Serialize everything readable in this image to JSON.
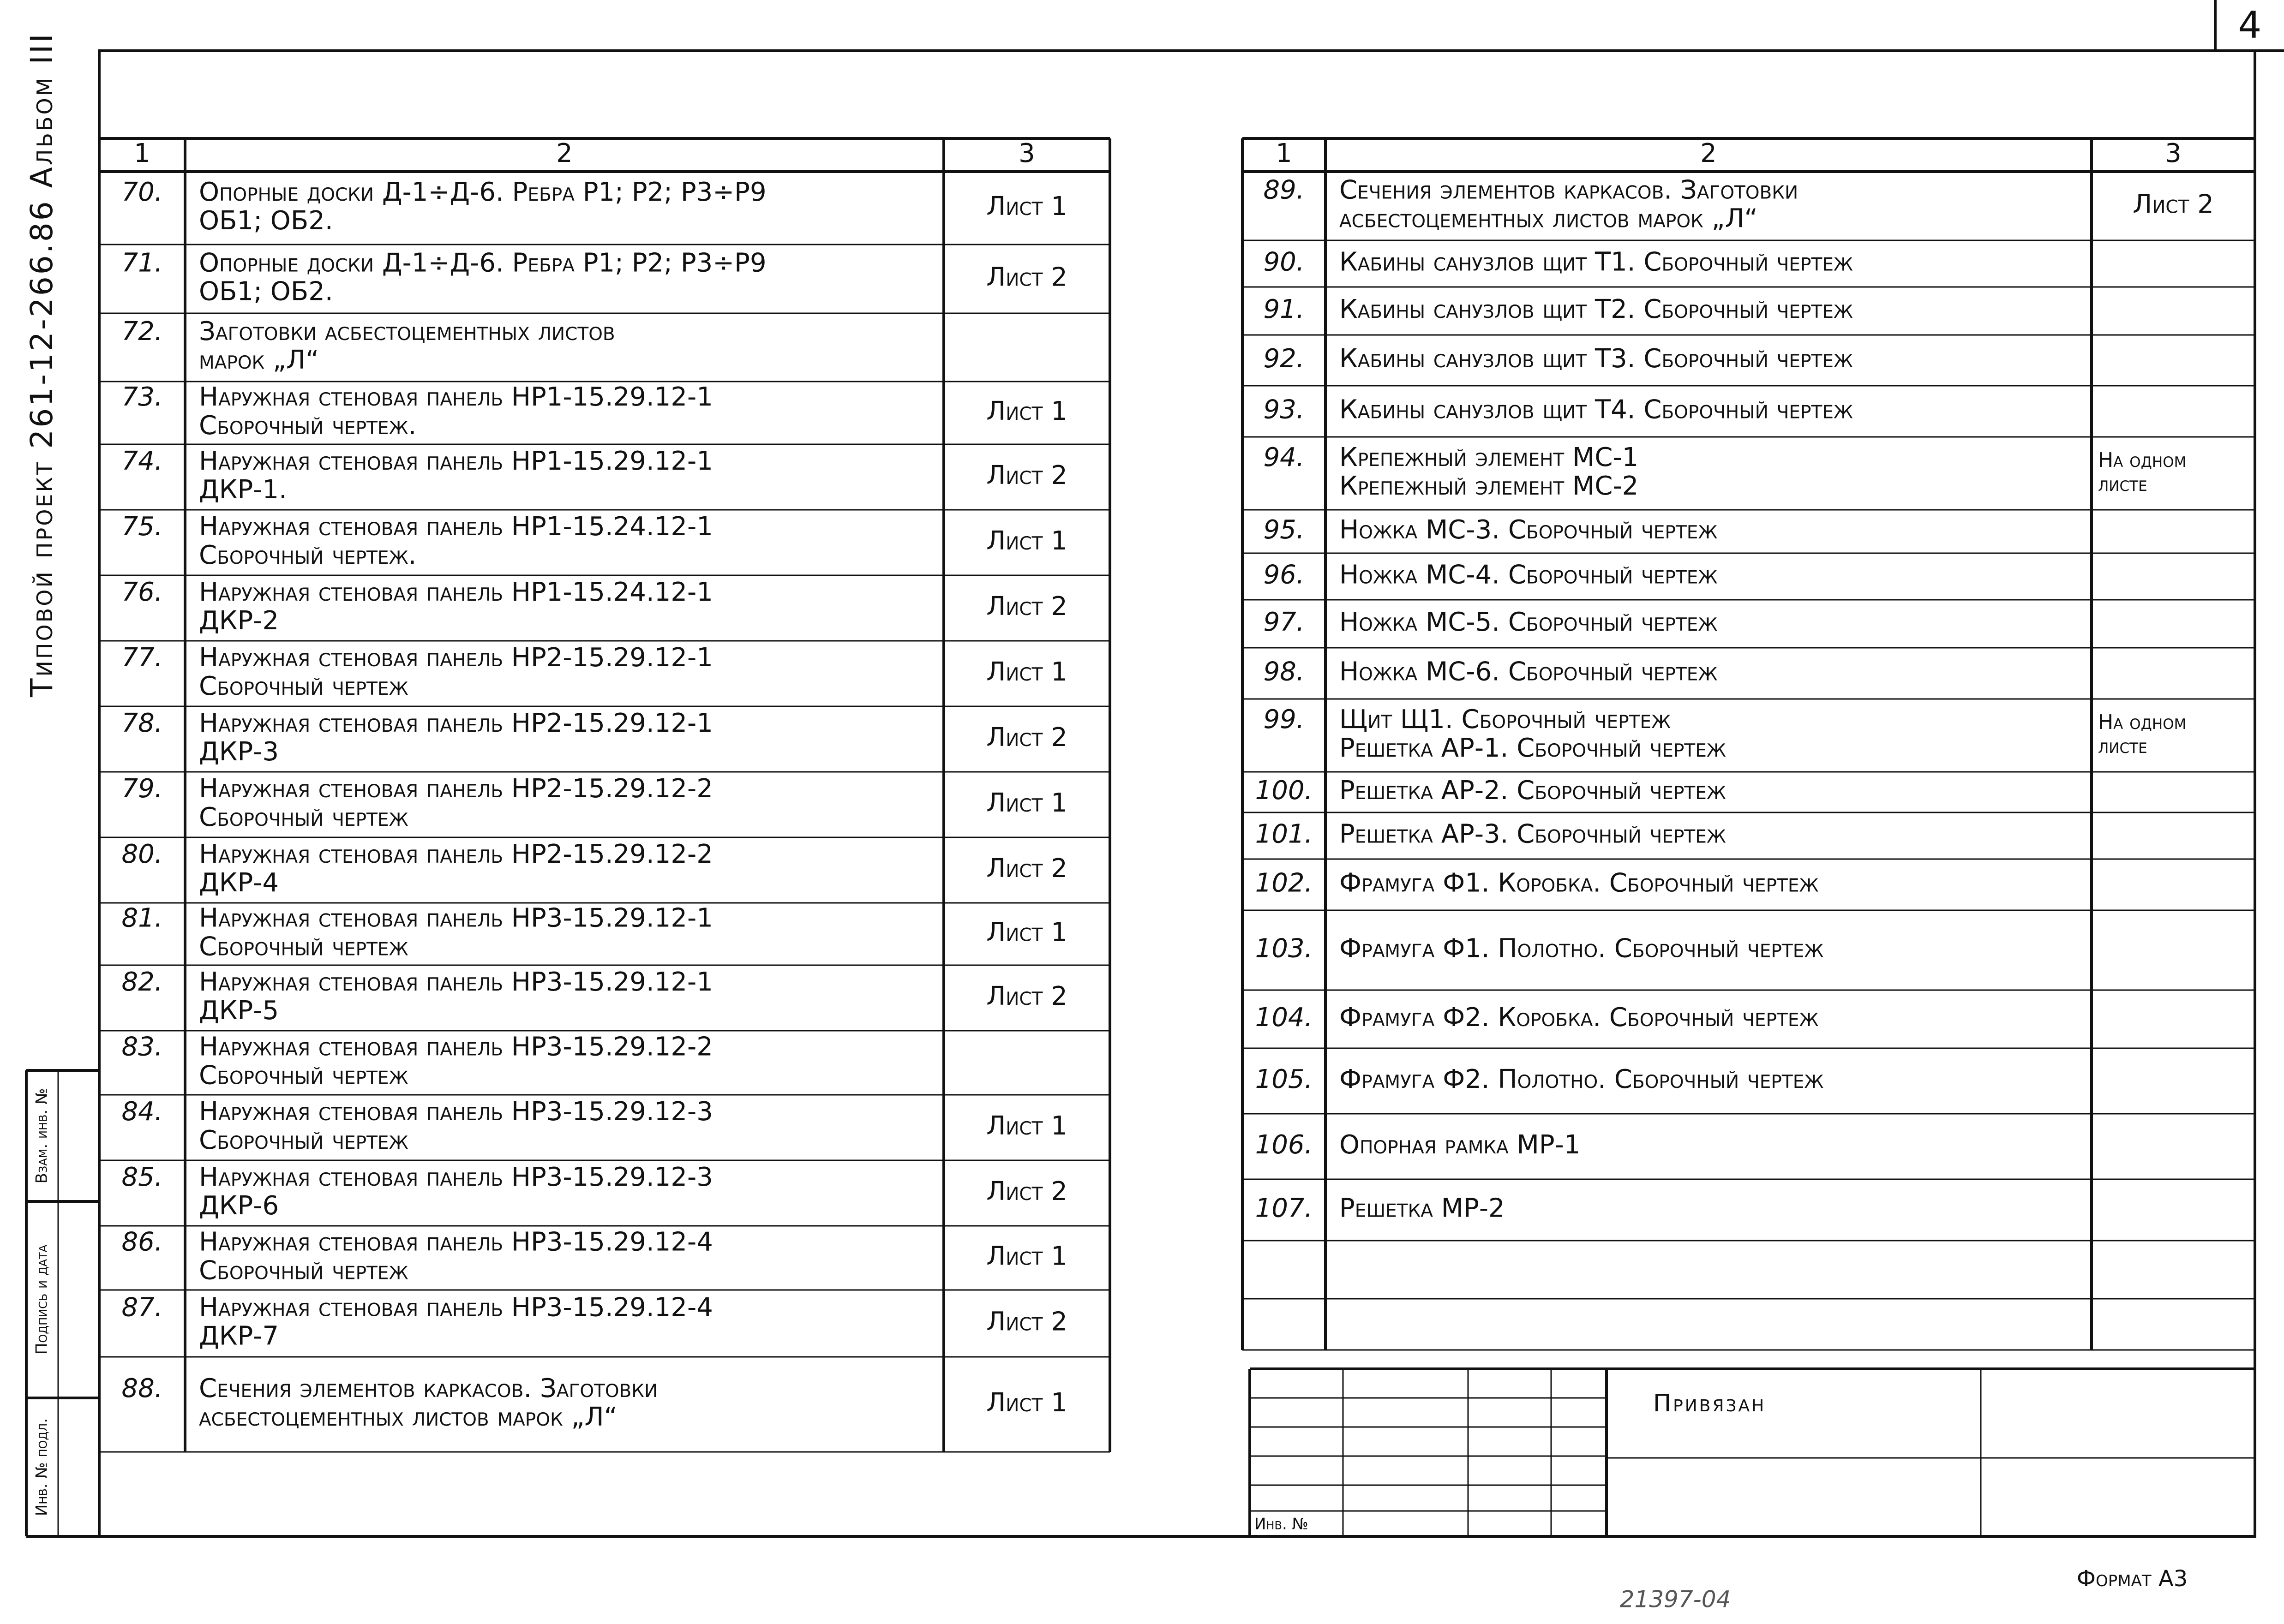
{
  "side_label": "Типовой проект 261-12-266.86 Альбом III",
  "page_number": "4",
  "side_stamp": [
    "Взам. инв. №",
    "Подпись и дата",
    "Инв. № подл."
  ],
  "left_table": {
    "headers": [
      "1",
      "2",
      "3"
    ],
    "rows": [
      {
        "no": "70.",
        "text": [
          "Опорные доски Д-1÷Д-6. Ребра Р1; Р2; Р3÷Р9",
          "ОБ1; ОБ2."
        ],
        "sheet": [
          "Лист 1"
        ]
      },
      {
        "no": "71.",
        "text": [
          "Опорные доски Д-1÷Д-6. Ребра Р1; Р2; Р3÷Р9",
          "ОБ1; ОБ2."
        ],
        "sheet": [
          "Лист 2"
        ]
      },
      {
        "no": "72.",
        "text": [
          "Заготовки асбестоцементных листов",
          "марок „Л“"
        ]
      },
      {
        "no": "73.",
        "text": [
          "Наружная стеновая панель НР1-15.29.12-1",
          "Сборочный чертеж."
        ],
        "sheet": [
          "Лист 1"
        ]
      },
      {
        "no": "74.",
        "text": [
          "Наружная стеновая панель НР1-15.29.12-1",
          "ДКР-1."
        ],
        "sheet": [
          "Лист 2"
        ]
      },
      {
        "no": "75.",
        "text": [
          "Наружная стеновая панель НР1-15.24.12-1",
          "Сборочный чертеж."
        ],
        "sheet": [
          "Лист 1"
        ]
      },
      {
        "no": "76.",
        "text": [
          "Наружная стеновая панель НР1-15.24.12-1",
          "ДКР-2"
        ],
        "sheet": [
          "Лист 2"
        ]
      },
      {
        "no": "77.",
        "text": [
          "Наружная стеновая панель НР2-15.29.12-1",
          "Сборочный чертеж"
        ],
        "sheet": [
          "Лист 1"
        ]
      },
      {
        "no": "78.",
        "text": [
          "Наружная стеновая панель НР2-15.29.12-1",
          "ДКР-3"
        ],
        "sheet": [
          "Лист 2"
        ]
      },
      {
        "no": "79.",
        "text": [
          "Наружная стеновая панель НР2-15.29.12-2",
          "Сборочный чертеж"
        ],
        "sheet": [
          "Лист 1"
        ]
      },
      {
        "no": "80.",
        "text": [
          "Наружная стеновая панель НР2-15.29.12-2",
          "ДКР-4"
        ],
        "sheet": [
          "Лист 2"
        ]
      },
      {
        "no": "81.",
        "text": [
          "Наружная стеновая панель НР3-15.29.12-1",
          "Сборочный чертеж"
        ],
        "sheet": [
          "Лист 1"
        ]
      },
      {
        "no": "82.",
        "text": [
          "Наружная стеновая панель НР3-15.29.12-1",
          "ДКР-5"
        ],
        "sheet": [
          "Лист 2"
        ]
      },
      {
        "no": "83.",
        "text": [
          "Наружная стеновая панель НР3-15.29.12-2",
          "Сборочный чертеж"
        ]
      },
      {
        "no": "84.",
        "text": [
          "Наружная стеновая панель НР3-15.29.12-3",
          "Сборочный чертеж"
        ],
        "sheet": [
          "Лист 1"
        ]
      },
      {
        "no": "85.",
        "text": [
          "Наружная стеновая панель НР3-15.29.12-3",
          "ДКР-6"
        ],
        "sheet": [
          "Лист 2"
        ]
      },
      {
        "no": "86.",
        "text": [
          "Наружная стеновая панель НР3-15.29.12-4",
          "Сборочный чертеж"
        ],
        "sheet": [
          "Лист 1"
        ]
      },
      {
        "no": "87.",
        "text": [
          "Наружная стеновая панель НР3-15.29.12-4",
          "ДКР-7"
        ],
        "sheet": [
          "Лист 2"
        ]
      },
      {
        "no": "88.",
        "text": [
          "Сечения элементов каркасов. Заготовки",
          "асбестоцементных листов марок „Л“"
        ],
        "sheet": [
          "Лист 1"
        ]
      }
    ]
  },
  "right_table": {
    "headers": [
      "1",
      "2",
      "3"
    ],
    "rows": [
      {
        "no": "89.",
        "text": [
          "Сечения элементов каркасов. Заготовки",
          "асбестоцементных листов марок „Л“"
        ],
        "sheet": [
          "Лист 2"
        ]
      },
      {
        "no": "90.",
        "text": [
          "Кабины санузлов щит Т1. Сборочный чертеж"
        ]
      },
      {
        "no": "91.",
        "text": [
          "Кабины санузлов щит Т2. Сборочный чертеж"
        ]
      },
      {
        "no": "92.",
        "text": [
          "Кабины санузлов щит Т3. Сборочный чертеж"
        ]
      },
      {
        "no": "93.",
        "text": [
          "Кабины санузлов щит Т4. Сборочный чертеж"
        ]
      },
      {
        "no": "94.",
        "text": [
          "Крепежный элемент МС-1",
          "Крепежный элемент МС-2"
        ],
        "sheet": [
          "На одном",
          "листе"
        ]
      },
      {
        "no": "95.",
        "text": [
          "Ножка МС-3. Сборочный чертеж"
        ]
      },
      {
        "no": "96.",
        "text": [
          "Ножка МС-4. Сборочный чертеж"
        ]
      },
      {
        "no": "97.",
        "text": [
          "Ножка МС-5. Сборочный чертеж"
        ]
      },
      {
        "no": "98.",
        "text": [
          "Ножка МС-6. Сборочный чертеж"
        ]
      },
      {
        "no": "99.",
        "text": [
          "Щит Щ1. Сборочный чертеж",
          "Решетка АР-1. Сборочный чертеж"
        ],
        "sheet": [
          "На одном",
          "листе"
        ]
      },
      {
        "no": "100.",
        "text": [
          "Решетка АР-2. Сборочный чертеж"
        ]
      },
      {
        "no": "101.",
        "text": [
          "Решетка АР-3. Сборочный чертеж"
        ]
      },
      {
        "no": "102.",
        "text": [
          "Фрамуга Ф1. Коробка. Сборочный чертеж"
        ]
      },
      {
        "no": "103.",
        "text": [
          "Фрамуга Ф1. Полотно. Сборочный чертеж"
        ]
      },
      {
        "no": "104.",
        "text": [
          "Фрамуга Ф2. Коробка. Сборочный чертеж"
        ]
      },
      {
        "no": "105.",
        "text": [
          "Фрамуга Ф2. Полотно. Сборочный чертеж"
        ]
      },
      {
        "no": "106.",
        "text": [
          "Опорная рамка МР-1"
        ]
      },
      {
        "no": "107.",
        "text": [
          "Решетка МР-2"
        ]
      }
    ]
  },
  "stamp": {
    "label": "Привязан",
    "inventory": "Инв. №"
  },
  "doc_number": "21397-04",
  "format": "Формат А3"
}
